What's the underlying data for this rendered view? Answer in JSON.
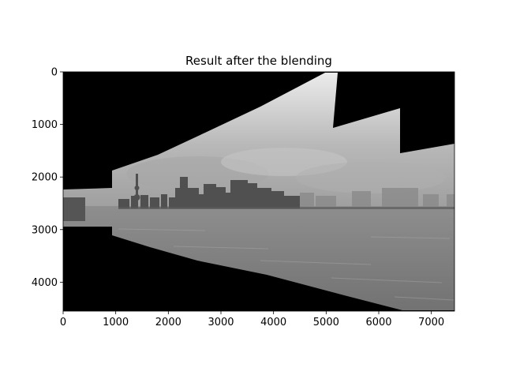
{
  "figure": {
    "title": "Result after the blending"
  },
  "axes": {
    "x_ticks": [
      0,
      1000,
      2000,
      3000,
      4000,
      5000,
      6000,
      7000
    ],
    "y_ticks": [
      0,
      1000,
      2000,
      3000,
      4000
    ],
    "x_range": [
      0,
      7440
    ],
    "y_range": [
      0,
      4550
    ],
    "y_inverted": true
  },
  "image": {
    "description_colors": {
      "background": "#000000",
      "sky_light": "#e6e6e6",
      "sky_dark": "#8a8a8a",
      "water": "#7e7e7e",
      "skyline": "#4d4d4d"
    }
  }
}
